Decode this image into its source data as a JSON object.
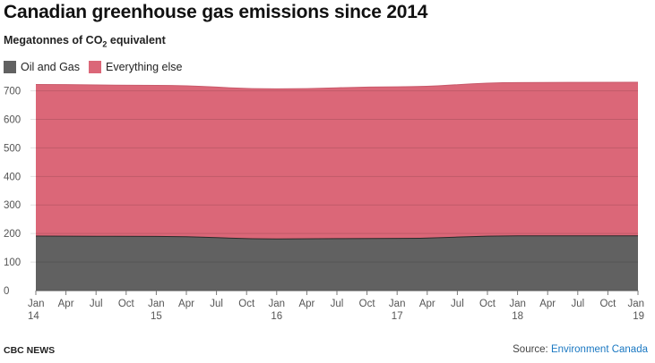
{
  "chart_data": {
    "type": "area",
    "stacked": true,
    "title": "Canadian greenhouse gas emissions since 2014",
    "subtitle_prefix": "Megatonnes of CO",
    "subtitle_sub": "2",
    "subtitle_suffix": " equivalent",
    "x_tick_labels": [
      {
        "month": "Jan",
        "year": "14"
      },
      {
        "month": "Apr",
        "year": ""
      },
      {
        "month": "Jul",
        "year": ""
      },
      {
        "month": "Oct",
        "year": ""
      },
      {
        "month": "Jan",
        "year": "15"
      },
      {
        "month": "Apr",
        "year": ""
      },
      {
        "month": "Jul",
        "year": ""
      },
      {
        "month": "Oct",
        "year": ""
      },
      {
        "month": "Jan",
        "year": "16"
      },
      {
        "month": "Apr",
        "year": ""
      },
      {
        "month": "Jul",
        "year": ""
      },
      {
        "month": "Oct",
        "year": ""
      },
      {
        "month": "Jan",
        "year": "17"
      },
      {
        "month": "Apr",
        "year": ""
      },
      {
        "month": "Jul",
        "year": ""
      },
      {
        "month": "Oct",
        "year": ""
      },
      {
        "month": "Jan",
        "year": "18"
      },
      {
        "month": "Apr",
        "year": ""
      },
      {
        "month": "Jul",
        "year": ""
      },
      {
        "month": "Oct",
        "year": ""
      },
      {
        "month": "Jan",
        "year": "19"
      }
    ],
    "x": [
      "2014-01",
      "2015-01",
      "2016-01",
      "2017-01",
      "2018-01",
      "2019-01"
    ],
    "series": [
      {
        "name": "Oil and Gas",
        "color": "#616161",
        "values": [
          191,
          190,
          181,
          183,
          192,
          192
        ]
      },
      {
        "name": "Everything else",
        "color": "#db6778",
        "values": [
          531,
          529,
          526,
          531,
          537,
          538
        ]
      }
    ],
    "totals": [
      722,
      719,
      707,
      714,
      729,
      730
    ],
    "y_ticks": [
      0,
      100,
      200,
      300,
      400,
      500,
      600,
      700
    ],
    "ylim": [
      0,
      730
    ],
    "grid": true,
    "legend_position": "top-left"
  },
  "footer": {
    "brand": "CBC NEWS",
    "source_label": "Source: ",
    "source_link": "Environment Canada"
  }
}
